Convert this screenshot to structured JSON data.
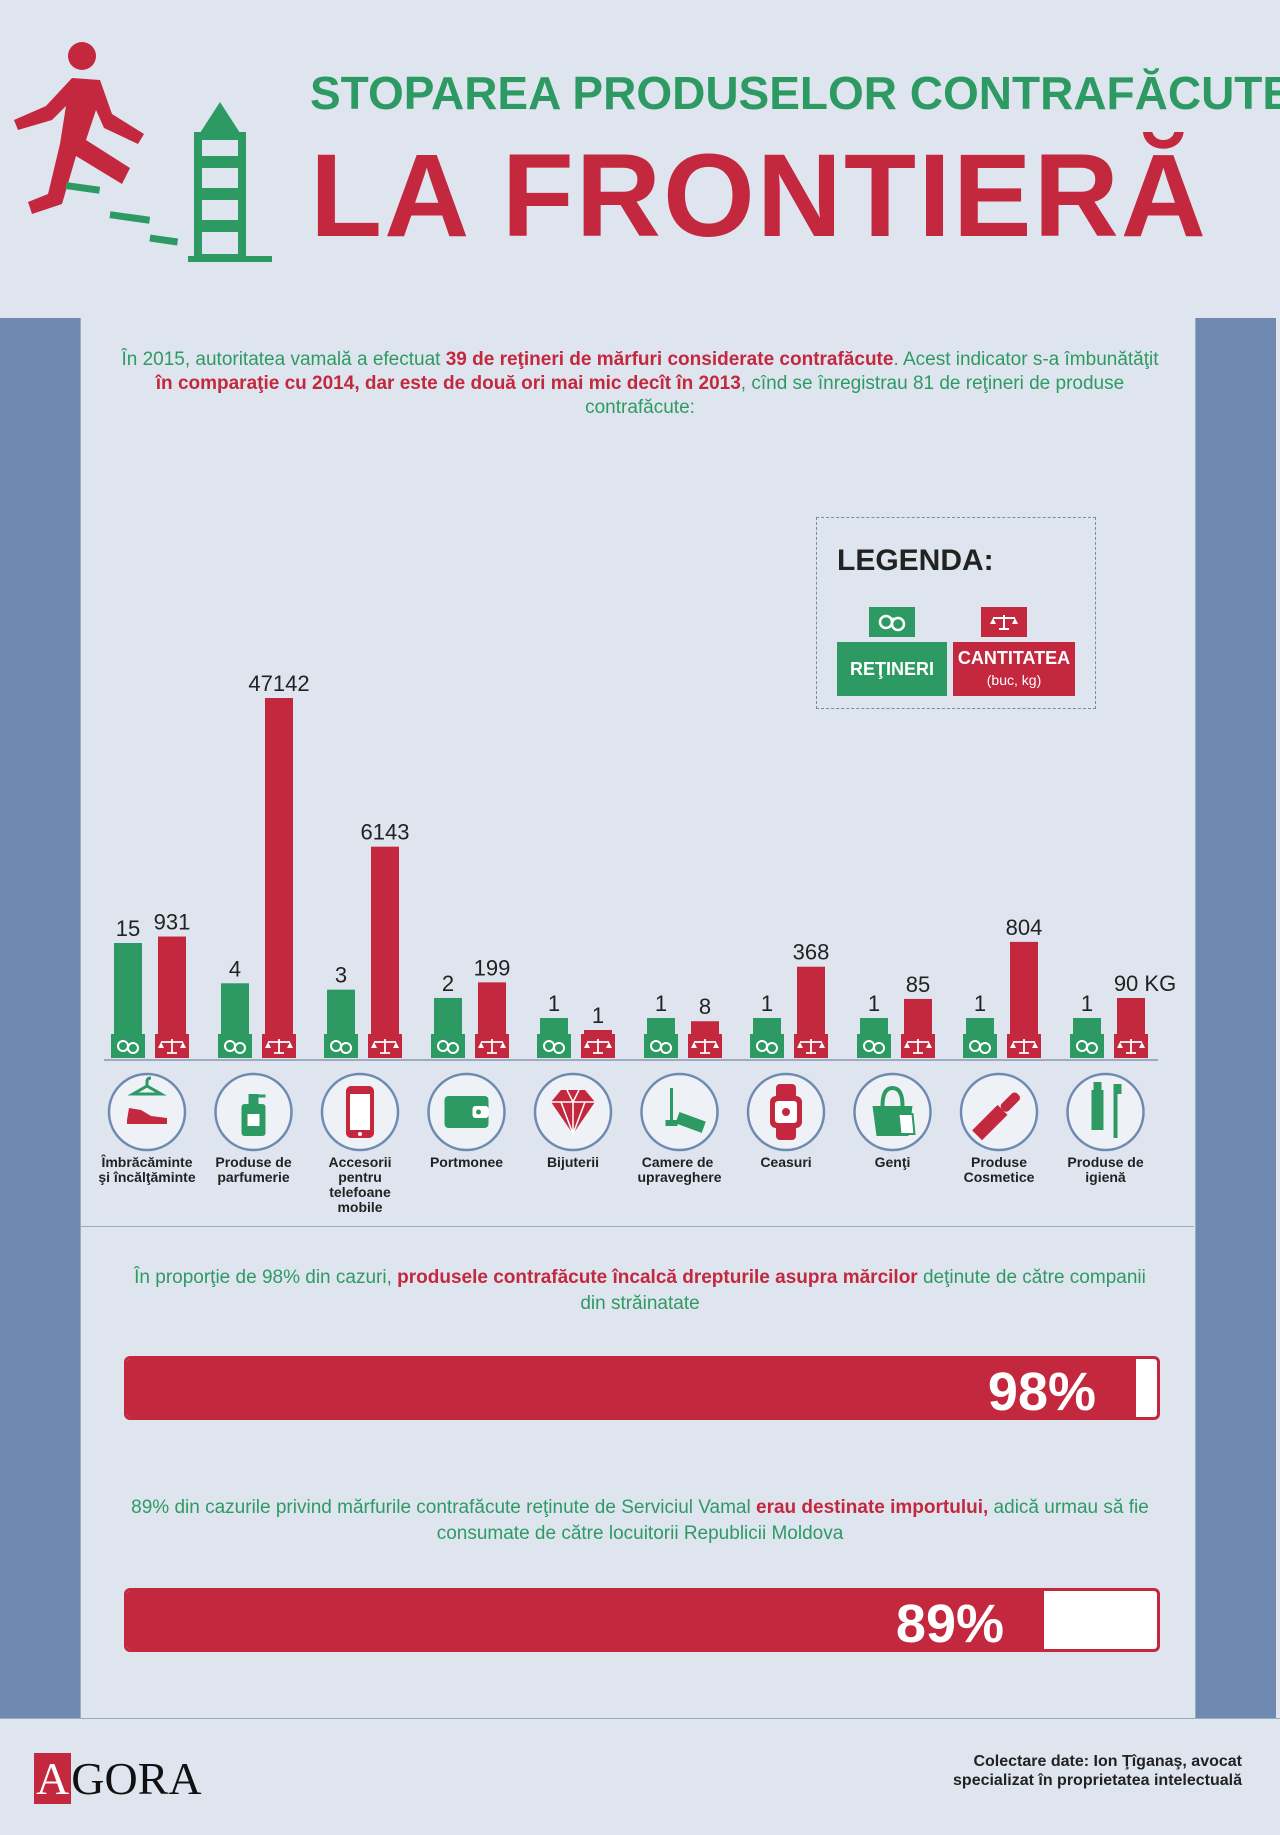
{
  "header": {
    "subtitle": "STOPAREA PRODUSELOR CONTRAFĂCUTE",
    "title": "LA FRONTIERĂ"
  },
  "intro": {
    "part1": "În 2015, autoritatea vamală a efectuat ",
    "bold1": "39 de reţineri de mărfuri considerate contrafăcute",
    "part2": ". Acest indicator s-a îmbunătăţit ",
    "bold2": "în comparaţie cu 2014, dar este de două ori mai mic decît în 2013",
    "part3": ", cînd se înregistrau 81 de reţineri de produse contrafăcute:"
  },
  "legend": {
    "title": "LEGENDA:",
    "retineri": "REŢINERI",
    "cantitatea": "CANTITATEA",
    "cantitatea_unit": "(buc, kg)"
  },
  "chart_data": {
    "type": "bar",
    "categories": [
      "Îmbrăcăminte şi încălţăminte",
      "Produse de parfumerie",
      "Accesorii pentru telefoane mobile",
      "Portmonee",
      "Bijuterii",
      "Camere de supraveghere",
      "Ceasuri",
      "Genţi",
      "Produse Cosmetice",
      "Produse de igienă"
    ],
    "series": [
      {
        "name": "REŢINERI",
        "values": [
          15,
          4,
          3,
          2,
          1,
          1,
          1,
          1,
          1,
          1
        ],
        "labels": [
          "15",
          "4",
          "3",
          "2",
          "1",
          "1",
          "1",
          "1",
          "1",
          "1"
        ]
      },
      {
        "name": "CANTITATEA (buc, kg)",
        "values": [
          931,
          47142,
          6143,
          199,
          1,
          8,
          368,
          85,
          804,
          90
        ],
        "labels": [
          "931",
          "47142",
          "6143",
          "199",
          "1",
          "8",
          "368",
          "85",
          "804",
          "90 KG"
        ]
      }
    ],
    "colors": {
      "retineri": "#2e9a63",
      "cantitatea": "#c3283f"
    },
    "icons": [
      "hanger-shoe-icon",
      "perfume-bottle-icon",
      "mobile-phone-icon",
      "wallet-icon",
      "diamond-icon",
      "camera-icon",
      "watch-icon",
      "handbag-icon",
      "lipstick-icon",
      "toothpaste-icon"
    ]
  },
  "stat1": {
    "part1": "În proporţie de 98% din cazuri, ",
    "bold": "produsele contrafăcute încalcă drepturile asupra mărcilor",
    "part2": " deţinute de către companii din străinatate",
    "value": 0.98,
    "label": "98%"
  },
  "stat2": {
    "part1": "89% din cazurile privind mărfurile contrafăcute reţinute de Serviciul Vamal ",
    "bold": "erau destinate importului,",
    "part2": " adică urmau să fie consumate de către locuitorii Republicii Moldova",
    "value": 0.89,
    "label": "89%"
  },
  "footer": {
    "logo": "AGORA",
    "credit_line1": "Colectare date: Ion Ţîganaş, avocat",
    "credit_line2": "specializat în proprietatea intelectuală"
  }
}
